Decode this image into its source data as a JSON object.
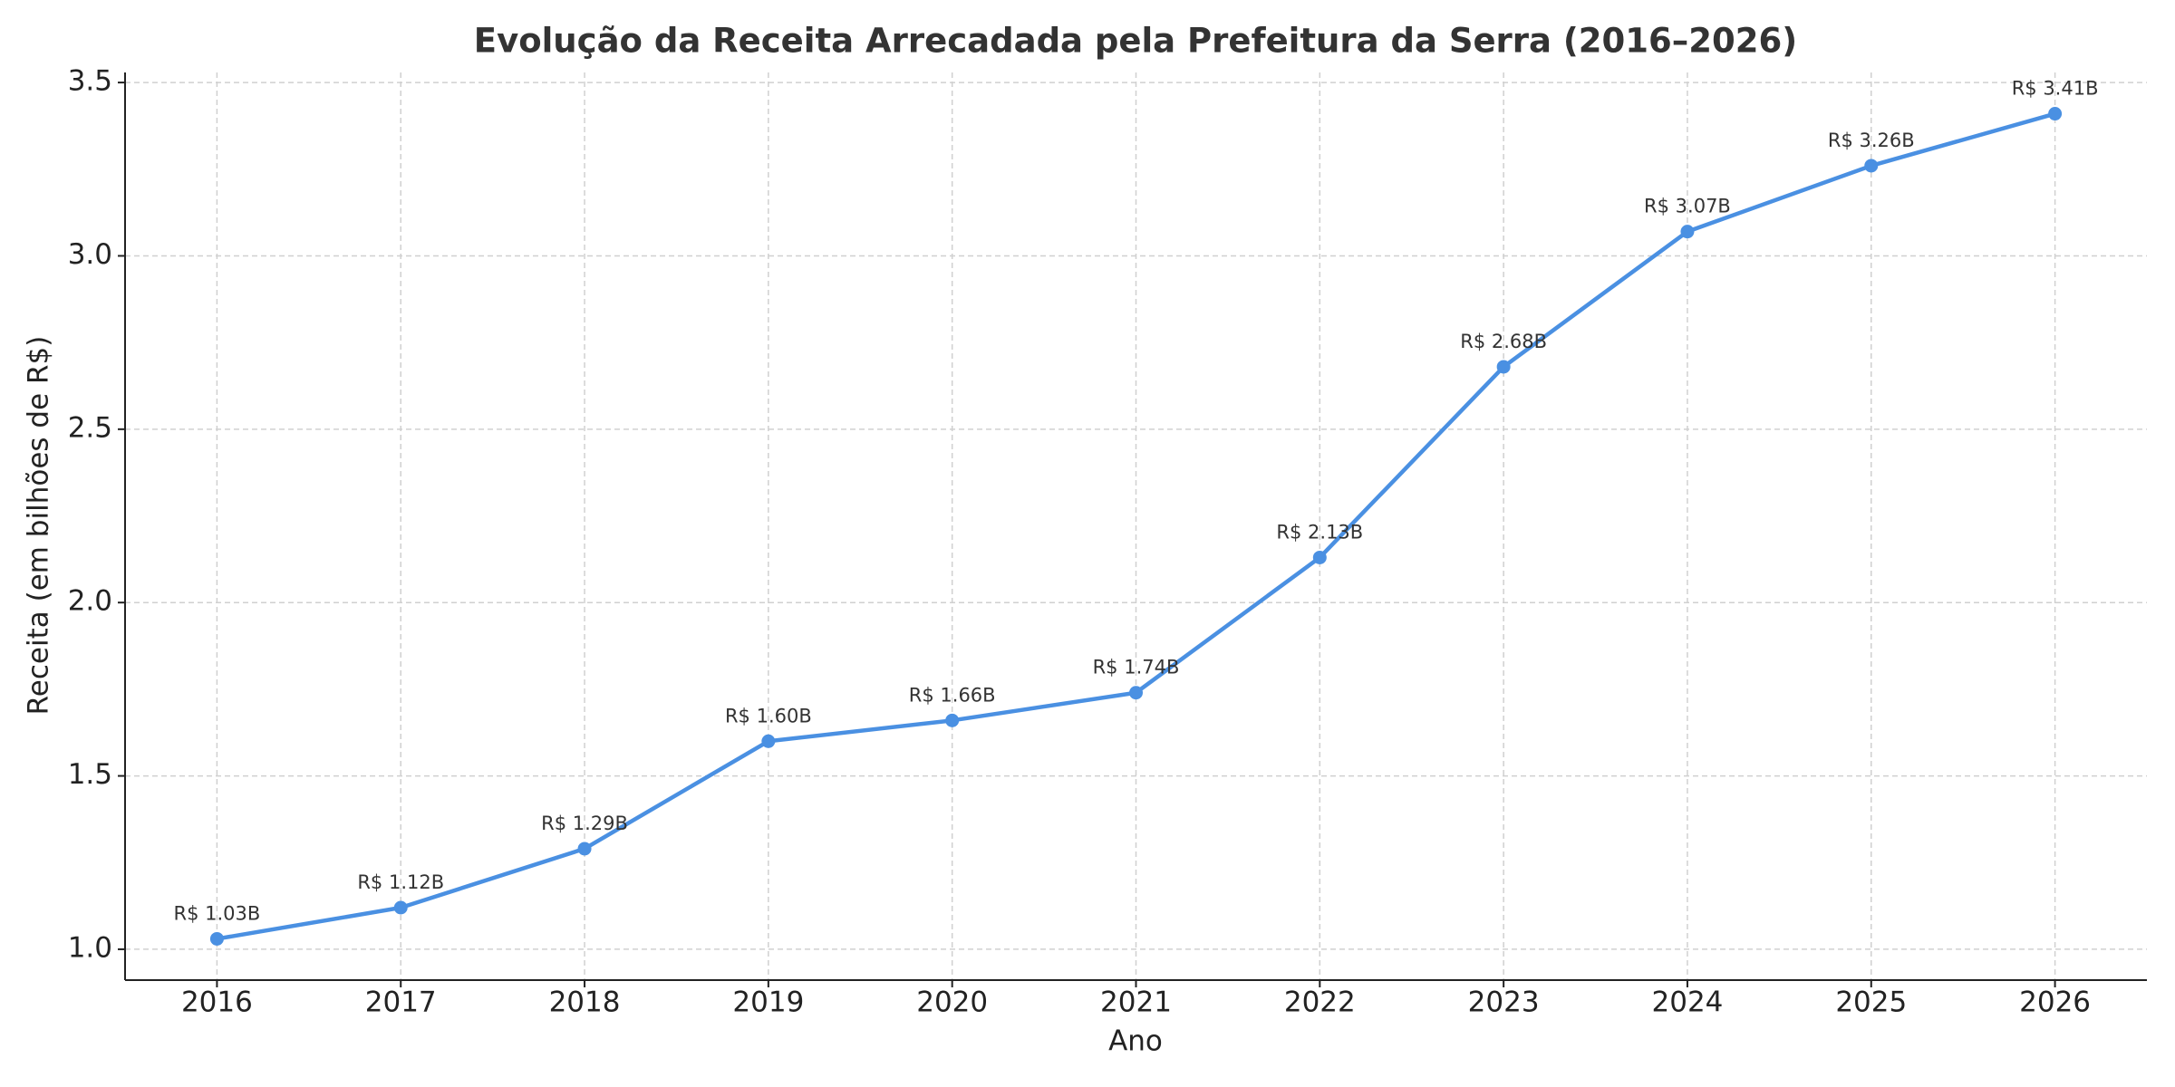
{
  "chart_data": {
    "type": "line",
    "title": "Evolução da Receita Arrecadada pela Prefeitura da Serra (2016–2026)",
    "xlabel": "Ano",
    "ylabel": "Receita (em bilhões de R$)",
    "x": [
      2016,
      2017,
      2018,
      2019,
      2020,
      2021,
      2022,
      2023,
      2024,
      2025,
      2026
    ],
    "series": [
      {
        "color": "#4a90e2",
        "values": [
          1.03,
          1.12,
          1.29,
          1.6,
          1.66,
          1.74,
          2.13,
          2.68,
          3.07,
          3.26,
          3.41
        ],
        "value_labels": [
          "R$ 1.03B",
          "R$ 1.12B",
          "R$ 1.29B",
          "R$ 1.60B",
          "R$ 1.66B",
          "R$ 1.74B",
          "R$ 2.13B",
          "R$ 2.68B",
          "R$ 3.07B",
          "R$ 3.26B",
          "R$ 3.41B"
        ]
      }
    ],
    "xlim": [
      2015.5,
      2026.5
    ],
    "ylim": [
      0.911,
      3.529
    ],
    "xticks": [
      2016,
      2017,
      2018,
      2019,
      2020,
      2021,
      2022,
      2023,
      2024,
      2025,
      2026
    ],
    "yticks": [
      {
        "value": 1,
        "label": "1.0"
      },
      1.5,
      {
        "value": 2,
        "label": "2.0"
      },
      2.5,
      {
        "value": 3,
        "label": "3.0"
      },
      3.5
    ],
    "grid": true
  }
}
